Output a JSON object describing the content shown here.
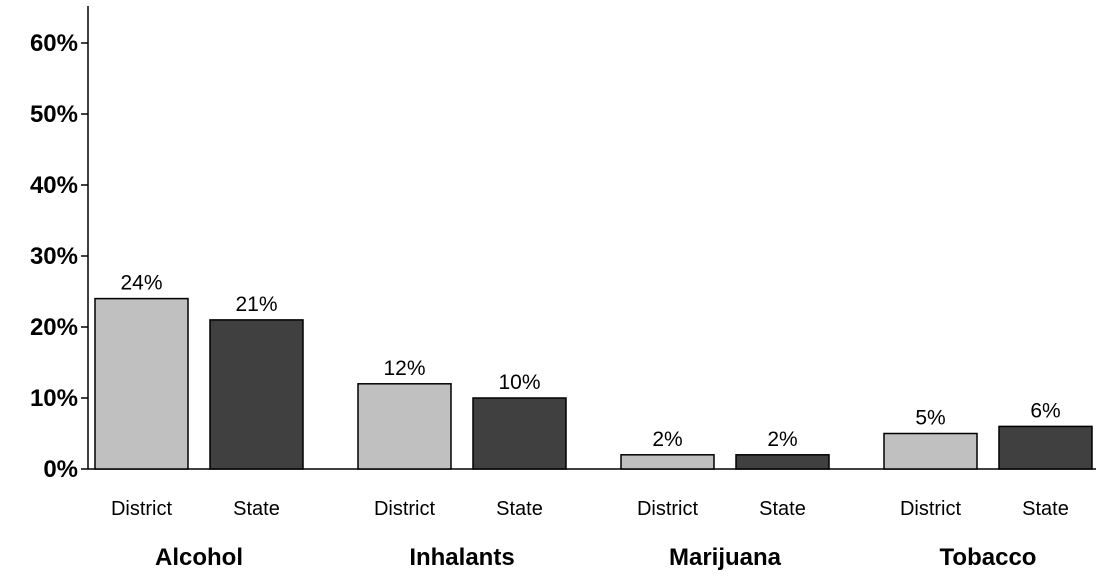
{
  "chart_data": {
    "type": "bar",
    "categories": [
      "Alcohol",
      "Inhalants",
      "Marijuana",
      "Tobacco"
    ],
    "series": [
      {
        "name": "District",
        "values": [
          24,
          12,
          2,
          5
        ],
        "labels": [
          "24%",
          "12%",
          "2%",
          "5%"
        ],
        "color": "#c0c0c0"
      },
      {
        "name": "State",
        "values": [
          21,
          10,
          2,
          6
        ],
        "labels": [
          "21%",
          "10%",
          "2%",
          "6%"
        ],
        "color": "#404040"
      }
    ],
    "yticks": [
      0,
      10,
      20,
      30,
      40,
      50,
      60
    ],
    "ytick_labels": [
      "0%",
      "10%",
      "20%",
      "30%",
      "40%",
      "50%",
      "60%"
    ],
    "ylim": [
      0,
      65
    ],
    "title": "",
    "xlabel": "",
    "ylabel": "",
    "grid": false,
    "legend": "none",
    "colors": {
      "district": "#c0c0c0",
      "state": "#404040",
      "axis": "#000000"
    }
  }
}
